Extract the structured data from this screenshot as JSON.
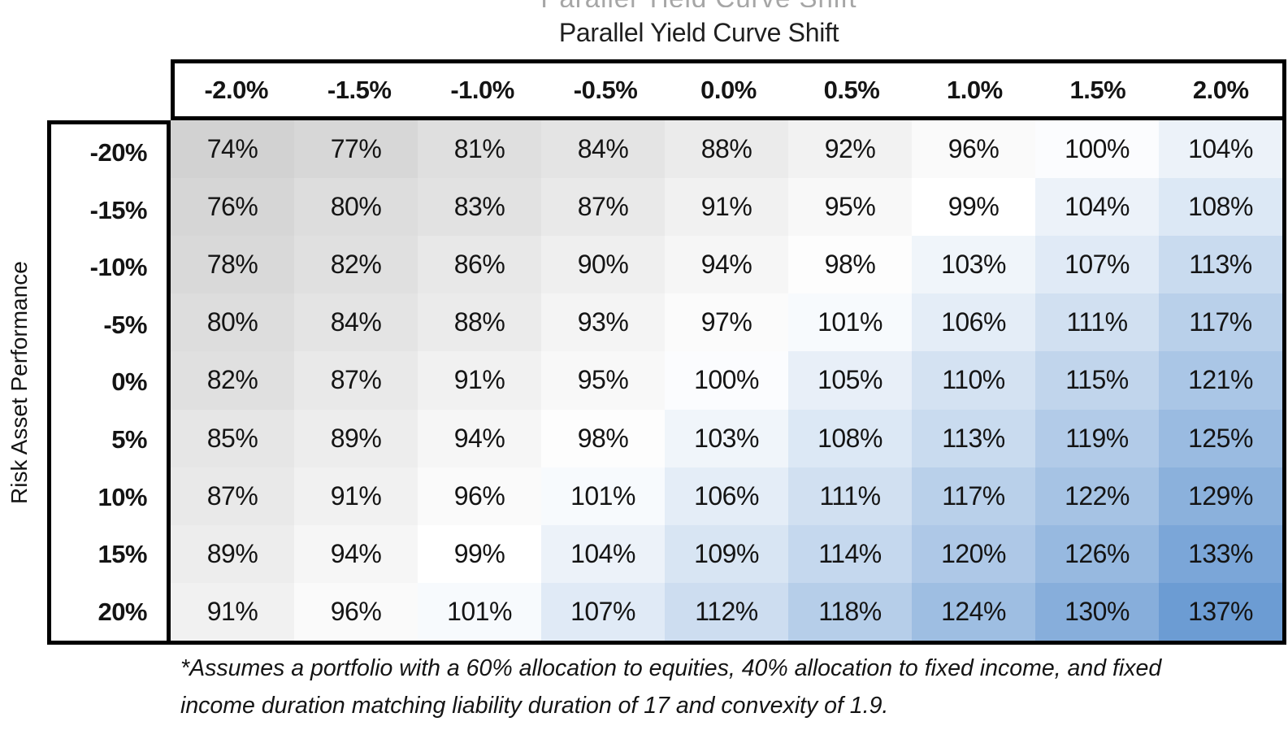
{
  "clipped_title": "Parallel Yield Curve Shift",
  "chart_data": {
    "type": "heatmap",
    "title": "Parallel Yield Curve Shift",
    "column_axis_label": "Parallel Yield Curve Shift",
    "row_axis_label": "Risk Asset Performance",
    "columns": [
      "-2.0%",
      "-1.5%",
      "-1.0%",
      "-0.5%",
      "0.0%",
      "0.5%",
      "1.0%",
      "1.5%",
      "2.0%"
    ],
    "rows": [
      "-20%",
      "-15%",
      "-10%",
      "-5%",
      "0%",
      "5%",
      "10%",
      "15%",
      "20%"
    ],
    "values": [
      [
        74,
        77,
        81,
        84,
        88,
        92,
        96,
        100,
        104
      ],
      [
        76,
        80,
        83,
        87,
        91,
        95,
        99,
        104,
        108
      ],
      [
        78,
        82,
        86,
        90,
        94,
        98,
        103,
        107,
        113
      ],
      [
        80,
        84,
        88,
        93,
        97,
        101,
        106,
        111,
        117
      ],
      [
        82,
        87,
        91,
        95,
        100,
        105,
        110,
        115,
        121
      ],
      [
        85,
        89,
        94,
        98,
        103,
        108,
        113,
        119,
        125
      ],
      [
        87,
        91,
        96,
        101,
        106,
        111,
        117,
        122,
        129
      ],
      [
        89,
        94,
        99,
        104,
        109,
        114,
        120,
        126,
        133
      ],
      [
        91,
        96,
        101,
        107,
        112,
        118,
        124,
        130,
        137
      ]
    ],
    "value_suffix": "%",
    "color_scale": {
      "min": 74,
      "mid": 99,
      "max": 137,
      "min_color": "#d2d2d2",
      "mid_color": "#ffffff",
      "max_color": "#6c9cd3"
    },
    "border_color": "#000000",
    "legend": "none",
    "grid": "off"
  },
  "footnote_lines": [
    "*Assumes a portfolio with a 60% allocation to equities, 40% allocation to fixed income, and fixed",
    "income duration matching liability duration of 17 and convexity of 1.9."
  ]
}
